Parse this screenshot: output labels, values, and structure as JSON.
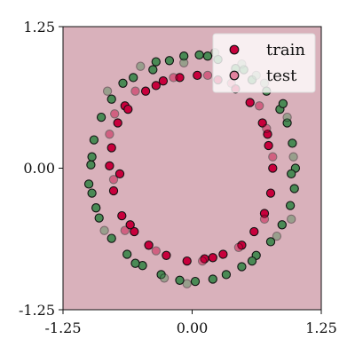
{
  "chart_data": {
    "type": "scatter",
    "background_color": "#d9b1bb",
    "xlim": [
      -1.25,
      1.25
    ],
    "ylim": [
      -1.25,
      1.25
    ],
    "x_ticks": [
      "-1.25",
      "0.00",
      "1.25"
    ],
    "y_ticks": [
      "1.25",
      "0.00",
      "-1.25"
    ],
    "grid": false,
    "legend_position": "top-right",
    "legend": [
      {
        "label": "train",
        "marker_color": "#c8003c",
        "alpha": 1.0
      },
      {
        "label": "test",
        "marker_color": "#c8003c",
        "alpha": 0.45
      }
    ],
    "class_colors": {
      "outer": "#4a8a55",
      "inner": "#c8003c"
    },
    "series": [
      {
        "name": "train",
        "alpha": 1.0,
        "outer": [
          [
            -0.57,
            0.8
          ],
          [
            -0.38,
            0.87
          ],
          [
            -0.22,
            0.95
          ],
          [
            -0.08,
            0.99
          ],
          [
            0.07,
            1.0
          ],
          [
            0.25,
            0.96
          ],
          [
            0.42,
            0.88
          ],
          [
            0.58,
            0.78
          ],
          [
            0.72,
            0.68
          ],
          [
            0.85,
            0.52
          ],
          [
            0.92,
            0.4
          ],
          [
            0.97,
            0.22
          ],
          [
            1.0,
            0.0
          ],
          [
            0.99,
            -0.18
          ],
          [
            0.95,
            -0.33
          ],
          [
            0.87,
            -0.5
          ],
          [
            0.76,
            -0.65
          ],
          [
            0.62,
            -0.77
          ],
          [
            0.48,
            -0.87
          ],
          [
            0.33,
            -0.94
          ],
          [
            0.2,
            -0.98
          ],
          [
            0.03,
            -1.0
          ],
          [
            -0.12,
            -0.99
          ],
          [
            -0.3,
            -0.94
          ],
          [
            -0.48,
            -0.86
          ],
          [
            -0.63,
            -0.76
          ],
          [
            -0.78,
            -0.62
          ],
          [
            -0.9,
            -0.44
          ],
          [
            -0.97,
            -0.22
          ],
          [
            -1.0,
            -0.14
          ],
          [
            -0.98,
            0.03
          ],
          [
            -0.95,
            0.25
          ],
          [
            -0.88,
            0.45
          ],
          [
            -0.78,
            0.61
          ],
          [
            -0.67,
            0.75
          ],
          [
            -0.35,
            0.94
          ],
          [
            0.15,
            0.99
          ],
          [
            0.5,
            0.87
          ],
          [
            0.88,
            0.57
          ],
          [
            0.96,
            -0.05
          ],
          [
            0.58,
            -0.82
          ],
          [
            -0.55,
            -0.84
          ],
          [
            -0.93,
            -0.35
          ],
          [
            -0.97,
            0.1
          ]
        ],
        "inner": [
          [
            -0.65,
            0.55
          ],
          [
            -0.72,
            0.4
          ],
          [
            -0.78,
            0.18
          ],
          [
            -0.8,
            0.02
          ],
          [
            -0.76,
            -0.2
          ],
          [
            -0.68,
            -0.42
          ],
          [
            -0.56,
            -0.56
          ],
          [
            -0.42,
            -0.68
          ],
          [
            -0.25,
            -0.77
          ],
          [
            -0.05,
            -0.82
          ],
          [
            0.12,
            -0.8
          ],
          [
            0.3,
            -0.76
          ],
          [
            0.48,
            -0.68
          ],
          [
            0.6,
            -0.56
          ],
          [
            0.7,
            -0.4
          ],
          [
            0.76,
            -0.22
          ],
          [
            0.78,
            0.0
          ],
          [
            0.74,
            0.2
          ],
          [
            0.68,
            0.4
          ],
          [
            0.56,
            0.58
          ],
          [
            0.42,
            0.7
          ],
          [
            0.25,
            0.78
          ],
          [
            0.05,
            0.82
          ],
          [
            -0.12,
            0.8
          ],
          [
            -0.28,
            0.77
          ],
          [
            -0.45,
            0.68
          ],
          [
            -0.62,
            0.52
          ],
          [
            -0.7,
            -0.05
          ],
          [
            -0.6,
            -0.5
          ],
          [
            0.2,
            -0.79
          ],
          [
            0.73,
            0.3
          ],
          [
            -0.35,
            0.73
          ]
        ]
      },
      {
        "name": "test",
        "alpha": 0.45,
        "outer": [
          [
            0.22,
            1.02
          ],
          [
            0.48,
            0.92
          ],
          [
            0.62,
            0.82
          ],
          [
            0.92,
            0.45
          ],
          [
            0.98,
            0.1
          ],
          [
            0.96,
            -0.45
          ],
          [
            0.82,
            -0.6
          ],
          [
            -0.05,
            -1.02
          ],
          [
            -0.27,
            -0.97
          ],
          [
            -0.85,
            -0.55
          ],
          [
            -0.93,
            -0.35
          ],
          [
            -0.82,
            0.68
          ],
          [
            -0.5,
            0.9
          ],
          [
            -0.08,
            0.93
          ],
          [
            0.7,
            0.75
          ]
        ],
        "inner": [
          [
            -0.8,
            0.3
          ],
          [
            -0.75,
            0.48
          ],
          [
            -0.55,
            0.68
          ],
          [
            -0.18,
            0.8
          ],
          [
            0.15,
            0.82
          ],
          [
            0.38,
            0.75
          ],
          [
            0.65,
            0.55
          ],
          [
            0.72,
            0.35
          ],
          [
            0.78,
            0.1
          ],
          [
            0.7,
            -0.45
          ],
          [
            0.45,
            -0.7
          ],
          [
            0.1,
            -0.82
          ],
          [
            -0.35,
            -0.73
          ],
          [
            -0.65,
            -0.55
          ],
          [
            -0.76,
            -0.1
          ]
        ]
      }
    ]
  }
}
